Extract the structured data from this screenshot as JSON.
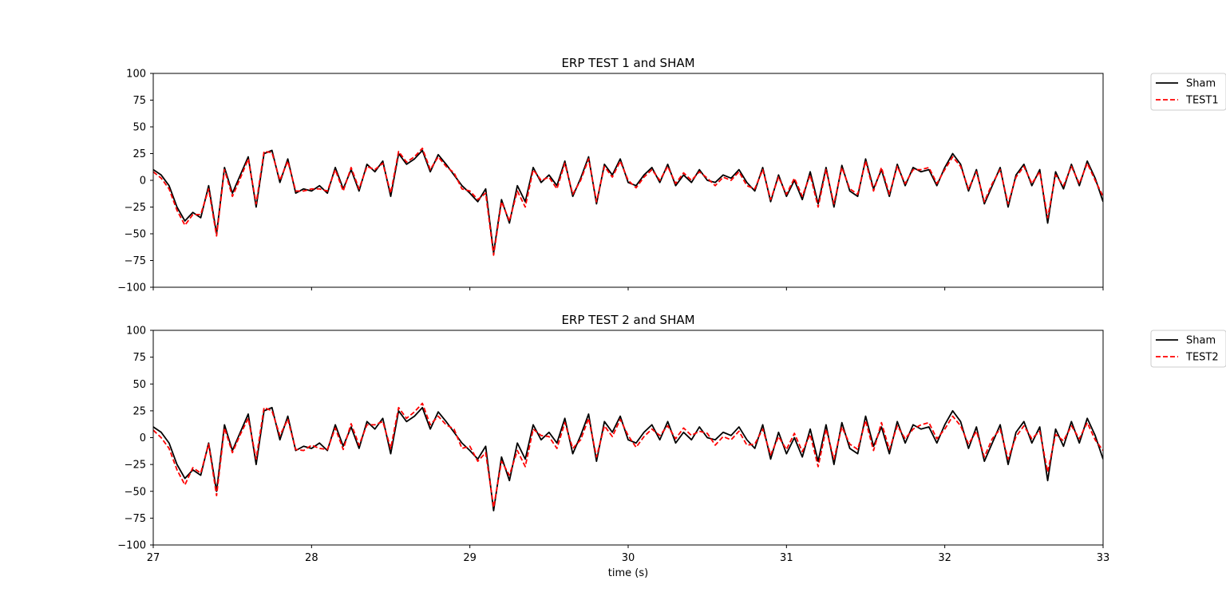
{
  "chart_data": [
    {
      "type": "line",
      "title": "ERP TEST 1 and SHAM",
      "xlabel": "",
      "ylabel": "",
      "xlim": [
        27,
        33
      ],
      "ylim": [
        -100,
        100
      ],
      "xticks": [
        27,
        28,
        29,
        30,
        31,
        32,
        33
      ],
      "xtick_labels_visible": false,
      "yticks": [
        -100,
        -75,
        -50,
        -25,
        0,
        25,
        50,
        75,
        100
      ],
      "ytick_labels": [
        "−100",
        "−75",
        "−50",
        "−25",
        "0",
        "25",
        "50",
        "75",
        "100"
      ],
      "legend": {
        "placement": "outside-top-right"
      },
      "series": [
        {
          "name": "Sham",
          "color": "#000000",
          "style": "solid",
          "x": [
            27.0,
            27.05,
            27.1,
            27.15,
            27.2,
            27.25,
            27.3,
            27.35,
            27.4,
            27.45,
            27.5,
            27.55,
            27.6,
            27.65,
            27.7,
            27.75,
            27.8,
            27.85,
            27.9,
            27.95,
            28.0,
            28.05,
            28.1,
            28.15,
            28.2,
            28.25,
            28.3,
            28.35,
            28.4,
            28.45,
            28.5,
            28.55,
            28.6,
            28.65,
            28.7,
            28.75,
            28.8,
            28.85,
            28.9,
            28.95,
            29.0,
            29.05,
            29.1,
            29.15,
            29.2,
            29.25,
            29.3,
            29.35,
            29.4,
            29.45,
            29.5,
            29.55,
            29.6,
            29.65,
            29.7,
            29.75,
            29.8,
            29.85,
            29.9,
            29.95,
            30.0,
            30.05,
            30.1,
            30.15,
            30.2,
            30.25,
            30.3,
            30.35,
            30.4,
            30.45,
            30.5,
            30.55,
            30.6,
            30.65,
            30.7,
            30.75,
            30.8,
            30.85,
            30.9,
            30.95,
            31.0,
            31.05,
            31.1,
            31.15,
            31.2,
            31.25,
            31.3,
            31.35,
            31.4,
            31.45,
            31.5,
            31.55,
            31.6,
            31.65,
            31.7,
            31.75,
            31.8,
            31.85,
            31.9,
            31.95,
            32.0,
            32.05,
            32.1,
            32.15,
            32.2,
            32.25,
            32.3,
            32.35,
            32.4,
            32.45,
            32.5,
            32.55,
            32.6,
            32.65,
            32.7,
            32.75,
            32.8,
            32.85,
            32.9,
            32.95,
            33.0
          ],
          "values": [
            10,
            5,
            -5,
            -25,
            -38,
            -30,
            -35,
            -5,
            -50,
            12,
            -12,
            5,
            22,
            -25,
            25,
            28,
            -2,
            20,
            -12,
            -8,
            -10,
            -5,
            -12,
            12,
            -8,
            10,
            -10,
            15,
            8,
            18,
            -15,
            25,
            15,
            20,
            28,
            8,
            24,
            15,
            5,
            -5,
            -12,
            -20,
            -8,
            -68,
            -18,
            -40,
            -5,
            -20,
            12,
            -2,
            5,
            -5,
            18,
            -15,
            2,
            22,
            -22,
            15,
            5,
            20,
            -2,
            -5,
            5,
            12,
            -2,
            15,
            -5,
            5,
            -2,
            10,
            0,
            -2,
            5,
            2,
            10,
            -2,
            -10,
            12,
            -20,
            5,
            -15,
            0,
            -18,
            8,
            -22,
            12,
            -25,
            14,
            -10,
            -15,
            20,
            -8,
            10,
            -15,
            15,
            -5,
            12,
            8,
            10,
            -5,
            12,
            25,
            15,
            -10,
            10,
            -22,
            -5,
            12,
            -25,
            5,
            15,
            -5,
            10,
            -40,
            8,
            -8,
            15,
            -5,
            18,
            2,
            -20
          ]
        },
        {
          "name": "TEST1",
          "color": "#ff0000",
          "style": "dashed",
          "x": [
            27.0,
            27.05,
            27.1,
            27.15,
            27.2,
            27.25,
            27.3,
            27.35,
            27.4,
            27.45,
            27.5,
            27.55,
            27.6,
            27.65,
            27.7,
            27.75,
            27.8,
            27.85,
            27.9,
            27.95,
            28.0,
            28.05,
            28.1,
            28.15,
            28.2,
            28.25,
            28.3,
            28.35,
            28.4,
            28.45,
            28.5,
            28.55,
            28.6,
            28.65,
            28.7,
            28.75,
            28.8,
            28.85,
            28.9,
            28.95,
            29.0,
            29.05,
            29.1,
            29.15,
            29.2,
            29.25,
            29.3,
            29.35,
            29.4,
            29.45,
            29.5,
            29.55,
            29.6,
            29.65,
            29.7,
            29.75,
            29.8,
            29.85,
            29.9,
            29.95,
            30.0,
            30.05,
            30.1,
            30.15,
            30.2,
            30.25,
            30.3,
            30.35,
            30.4,
            30.45,
            30.5,
            30.55,
            30.6,
            30.65,
            30.7,
            30.75,
            30.8,
            30.85,
            30.9,
            30.95,
            31.0,
            31.05,
            31.1,
            31.15,
            31.2,
            31.25,
            31.3,
            31.35,
            31.4,
            31.45,
            31.5,
            31.55,
            31.6,
            31.65,
            31.7,
            31.75,
            31.8,
            31.85,
            31.9,
            31.95,
            32.0,
            32.05,
            32.1,
            32.15,
            32.2,
            32.25,
            32.3,
            32.35,
            32.4,
            32.45,
            32.5,
            32.55,
            32.6,
            32.65,
            32.7,
            32.75,
            32.8,
            32.85,
            32.9,
            32.95,
            33.0
          ],
          "values": [
            8,
            2,
            -8,
            -28,
            -42,
            -32,
            -32,
            -8,
            -52,
            10,
            -15,
            2,
            20,
            -22,
            27,
            26,
            0,
            18,
            -10,
            -10,
            -8,
            -8,
            -10,
            10,
            -10,
            12,
            -8,
            13,
            10,
            16,
            -12,
            27,
            17,
            22,
            30,
            10,
            22,
            13,
            7,
            -8,
            -10,
            -18,
            -12,
            -70,
            -20,
            -38,
            -10,
            -25,
            10,
            0,
            3,
            -8,
            16,
            -13,
            0,
            20,
            -20,
            13,
            3,
            18,
            0,
            -7,
            3,
            10,
            0,
            13,
            -3,
            7,
            0,
            8,
            2,
            -5,
            3,
            0,
            8,
            -5,
            -8,
            10,
            -18,
            3,
            -13,
            2,
            -15,
            5,
            -25,
            10,
            -22,
            12,
            -8,
            -13,
            18,
            -10,
            12,
            -13,
            13,
            -3,
            10,
            10,
            12,
            -3,
            10,
            22,
            13,
            -8,
            8,
            -20,
            -3,
            10,
            -22,
            3,
            13,
            -3,
            8,
            -35,
            5,
            -5,
            13,
            -3,
            16,
            0,
            -15
          ]
        }
      ]
    },
    {
      "type": "line",
      "title": "ERP TEST 2 and SHAM",
      "xlabel": "time (s)",
      "ylabel": "",
      "xlim": [
        27,
        33
      ],
      "ylim": [
        -100,
        100
      ],
      "xticks": [
        27,
        28,
        29,
        30,
        31,
        32,
        33
      ],
      "xtick_labels_visible": true,
      "xtick_labels": [
        "27",
        "28",
        "29",
        "30",
        "31",
        "32",
        "33"
      ],
      "yticks": [
        -100,
        -75,
        -50,
        -25,
        0,
        25,
        50,
        75,
        100
      ],
      "ytick_labels": [
        "−100",
        "−75",
        "−50",
        "−25",
        "0",
        "25",
        "50",
        "75",
        "100"
      ],
      "legend": {
        "placement": "outside-top-right"
      },
      "series": [
        {
          "name": "Sham",
          "color": "#000000",
          "style": "solid",
          "x": [
            27.0,
            27.05,
            27.1,
            27.15,
            27.2,
            27.25,
            27.3,
            27.35,
            27.4,
            27.45,
            27.5,
            27.55,
            27.6,
            27.65,
            27.7,
            27.75,
            27.8,
            27.85,
            27.9,
            27.95,
            28.0,
            28.05,
            28.1,
            28.15,
            28.2,
            28.25,
            28.3,
            28.35,
            28.4,
            28.45,
            28.5,
            28.55,
            28.6,
            28.65,
            28.7,
            28.75,
            28.8,
            28.85,
            28.9,
            28.95,
            29.0,
            29.05,
            29.1,
            29.15,
            29.2,
            29.25,
            29.3,
            29.35,
            29.4,
            29.45,
            29.5,
            29.55,
            29.6,
            29.65,
            29.7,
            29.75,
            29.8,
            29.85,
            29.9,
            29.95,
            30.0,
            30.05,
            30.1,
            30.15,
            30.2,
            30.25,
            30.3,
            30.35,
            30.4,
            30.45,
            30.5,
            30.55,
            30.6,
            30.65,
            30.7,
            30.75,
            30.8,
            30.85,
            30.9,
            30.95,
            31.0,
            31.05,
            31.1,
            31.15,
            31.2,
            31.25,
            31.3,
            31.35,
            31.4,
            31.45,
            31.5,
            31.55,
            31.6,
            31.65,
            31.7,
            31.75,
            31.8,
            31.85,
            31.9,
            31.95,
            32.0,
            32.05,
            32.1,
            32.15,
            32.2,
            32.25,
            32.3,
            32.35,
            32.4,
            32.45,
            32.5,
            32.55,
            32.6,
            32.65,
            32.7,
            32.75,
            32.8,
            32.85,
            32.9,
            32.95,
            33.0
          ],
          "values": [
            10,
            5,
            -5,
            -25,
            -38,
            -30,
            -35,
            -5,
            -50,
            12,
            -12,
            5,
            22,
            -25,
            25,
            28,
            -2,
            20,
            -12,
            -8,
            -10,
            -5,
            -12,
            12,
            -8,
            10,
            -10,
            15,
            8,
            18,
            -15,
            25,
            15,
            20,
            28,
            8,
            24,
            15,
            5,
            -5,
            -12,
            -20,
            -8,
            -68,
            -18,
            -40,
            -5,
            -20,
            12,
            -2,
            5,
            -5,
            18,
            -15,
            2,
            22,
            -22,
            15,
            5,
            20,
            -2,
            -5,
            5,
            12,
            -2,
            15,
            -5,
            5,
            -2,
            10,
            0,
            -2,
            5,
            2,
            10,
            -2,
            -10,
            12,
            -20,
            5,
            -15,
            0,
            -18,
            8,
            -22,
            12,
            -25,
            14,
            -10,
            -15,
            20,
            -8,
            10,
            -15,
            15,
            -5,
            12,
            8,
            10,
            -5,
            12,
            25,
            15,
            -10,
            10,
            -22,
            -5,
            12,
            -25,
            5,
            15,
            -5,
            10,
            -40,
            8,
            -8,
            15,
            -5,
            18,
            2,
            -20
          ]
        },
        {
          "name": "TEST2",
          "color": "#ff0000",
          "style": "dashed",
          "x": [
            27.0,
            27.05,
            27.1,
            27.15,
            27.2,
            27.25,
            27.3,
            27.35,
            27.4,
            27.45,
            27.5,
            27.55,
            27.6,
            27.65,
            27.7,
            27.75,
            27.8,
            27.85,
            27.9,
            27.95,
            28.0,
            28.05,
            28.1,
            28.15,
            28.2,
            28.25,
            28.3,
            28.35,
            28.4,
            28.45,
            28.5,
            28.55,
            28.6,
            28.65,
            28.7,
            28.75,
            28.8,
            28.85,
            28.9,
            28.95,
            29.0,
            29.05,
            29.1,
            29.15,
            29.2,
            29.25,
            29.3,
            29.35,
            29.4,
            29.45,
            29.5,
            29.55,
            29.6,
            29.65,
            29.7,
            29.75,
            29.8,
            29.85,
            29.9,
            29.95,
            30.0,
            30.05,
            30.1,
            30.15,
            30.2,
            30.25,
            30.3,
            30.35,
            30.4,
            30.45,
            30.5,
            30.55,
            30.6,
            30.65,
            30.7,
            30.75,
            30.8,
            30.85,
            30.9,
            30.95,
            31.0,
            31.05,
            31.1,
            31.15,
            31.2,
            31.25,
            31.3,
            31.35,
            31.4,
            31.45,
            31.5,
            31.55,
            31.6,
            31.65,
            31.7,
            31.75,
            31.8,
            31.85,
            31.9,
            31.95,
            32.0,
            32.05,
            32.1,
            32.15,
            32.2,
            32.25,
            32.3,
            32.35,
            32.4,
            32.45,
            32.5,
            32.55,
            32.6,
            32.65,
            32.7,
            32.75,
            32.8,
            32.85,
            32.9,
            32.95,
            33.0
          ],
          "values": [
            7,
            0,
            -10,
            -30,
            -44,
            -28,
            -33,
            -6,
            -54,
            9,
            -14,
            3,
            18,
            -20,
            28,
            25,
            2,
            17,
            -11,
            -12,
            -7,
            -10,
            -11,
            9,
            -11,
            13,
            -7,
            12,
            12,
            15,
            -10,
            28,
            18,
            24,
            32,
            12,
            20,
            12,
            8,
            -10,
            -8,
            -22,
            -14,
            -65,
            -22,
            -35,
            -12,
            -27,
            8,
            2,
            1,
            -10,
            14,
            -10,
            -2,
            18,
            -18,
            11,
            1,
            17,
            2,
            -9,
            1,
            8,
            2,
            11,
            -1,
            9,
            2,
            6,
            4,
            -7,
            1,
            -2,
            6,
            -7,
            -6,
            8,
            -16,
            1,
            -11,
            4,
            -13,
            3,
            -27,
            8,
            -20,
            10,
            -6,
            -11,
            16,
            -12,
            14,
            -11,
            11,
            -1,
            8,
            12,
            14,
            -1,
            8,
            20,
            11,
            -6,
            6,
            -18,
            -1,
            8,
            -20,
            1,
            11,
            -1,
            6,
            -32,
            3,
            -3,
            11,
            -1,
            14,
            -2,
            -12
          ]
        }
      ]
    }
  ]
}
